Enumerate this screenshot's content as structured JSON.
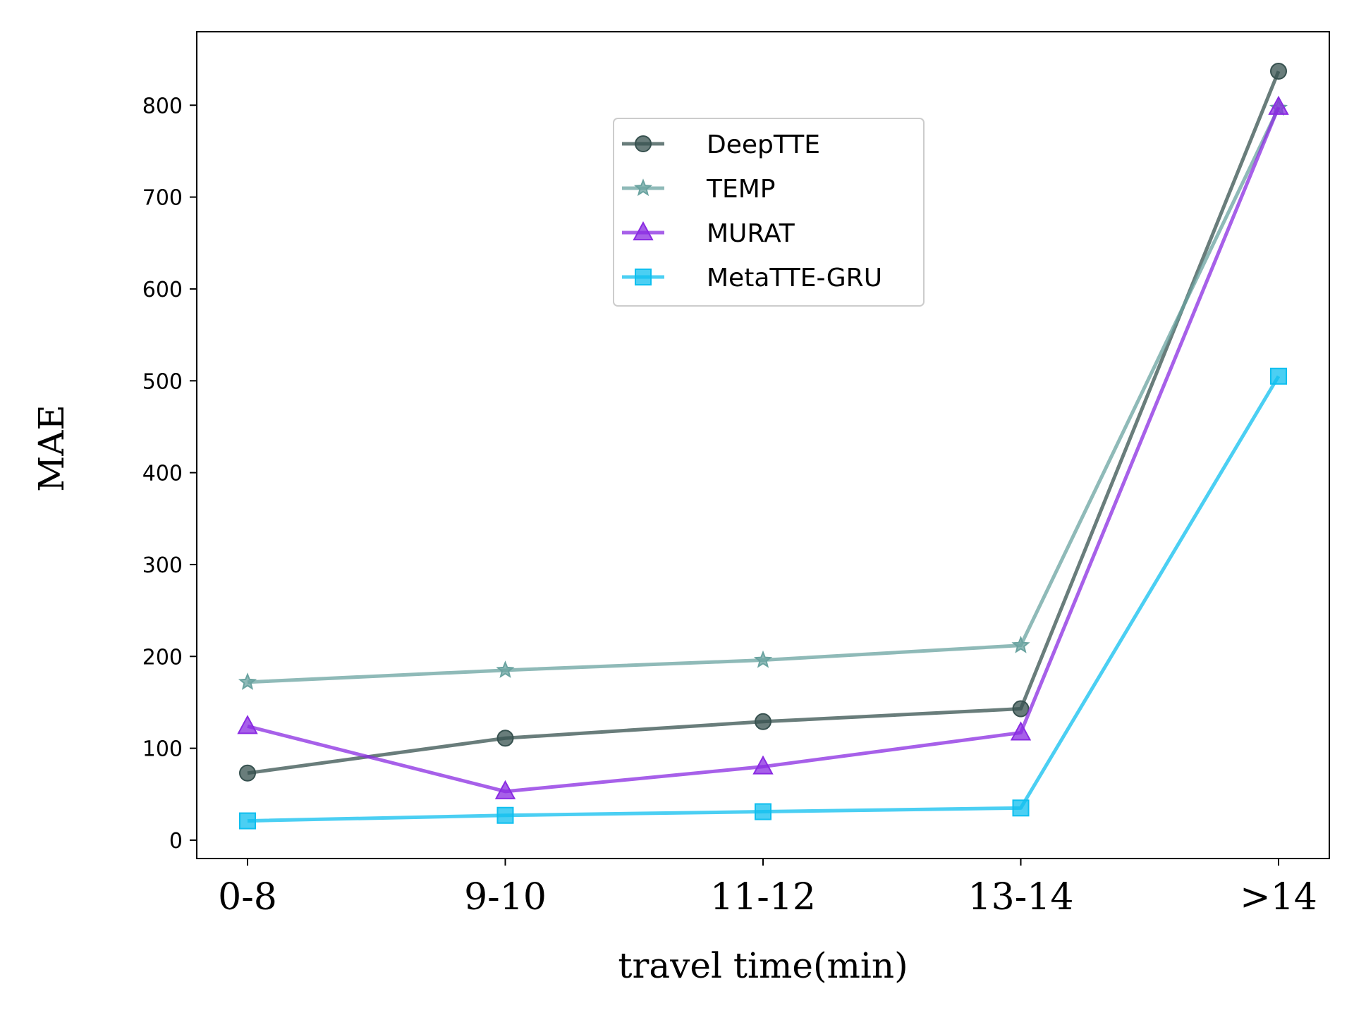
{
  "chart_data": {
    "type": "line",
    "title": "",
    "xlabel": "travel time(min)",
    "ylabel": "MAE",
    "categories": [
      "0-8",
      "9-10",
      "11-12",
      "13-14",
      ">14"
    ],
    "yticks": [
      0,
      100,
      200,
      300,
      400,
      500,
      600,
      700,
      800
    ],
    "ylim": [
      -20,
      880
    ],
    "grid": false,
    "legend_position": "upper-center",
    "series": [
      {
        "name": "DeepTTE",
        "values": [
          73,
          111,
          129,
          143,
          837
        ],
        "color": "#37514f",
        "marker": "circle"
      },
      {
        "name": "TEMP",
        "values": [
          172,
          185,
          196,
          212,
          797
        ],
        "color": "#6aa3a0",
        "marker": "star"
      },
      {
        "name": "MURAT",
        "values": [
          124,
          53,
          80,
          117,
          798
        ],
        "color": "#8a2be2",
        "marker": "triangle"
      },
      {
        "name": "MetaTTE-GRU",
        "values": [
          21,
          27,
          31,
          35,
          505
        ],
        "color": "#0fbfef",
        "marker": "square"
      }
    ]
  }
}
